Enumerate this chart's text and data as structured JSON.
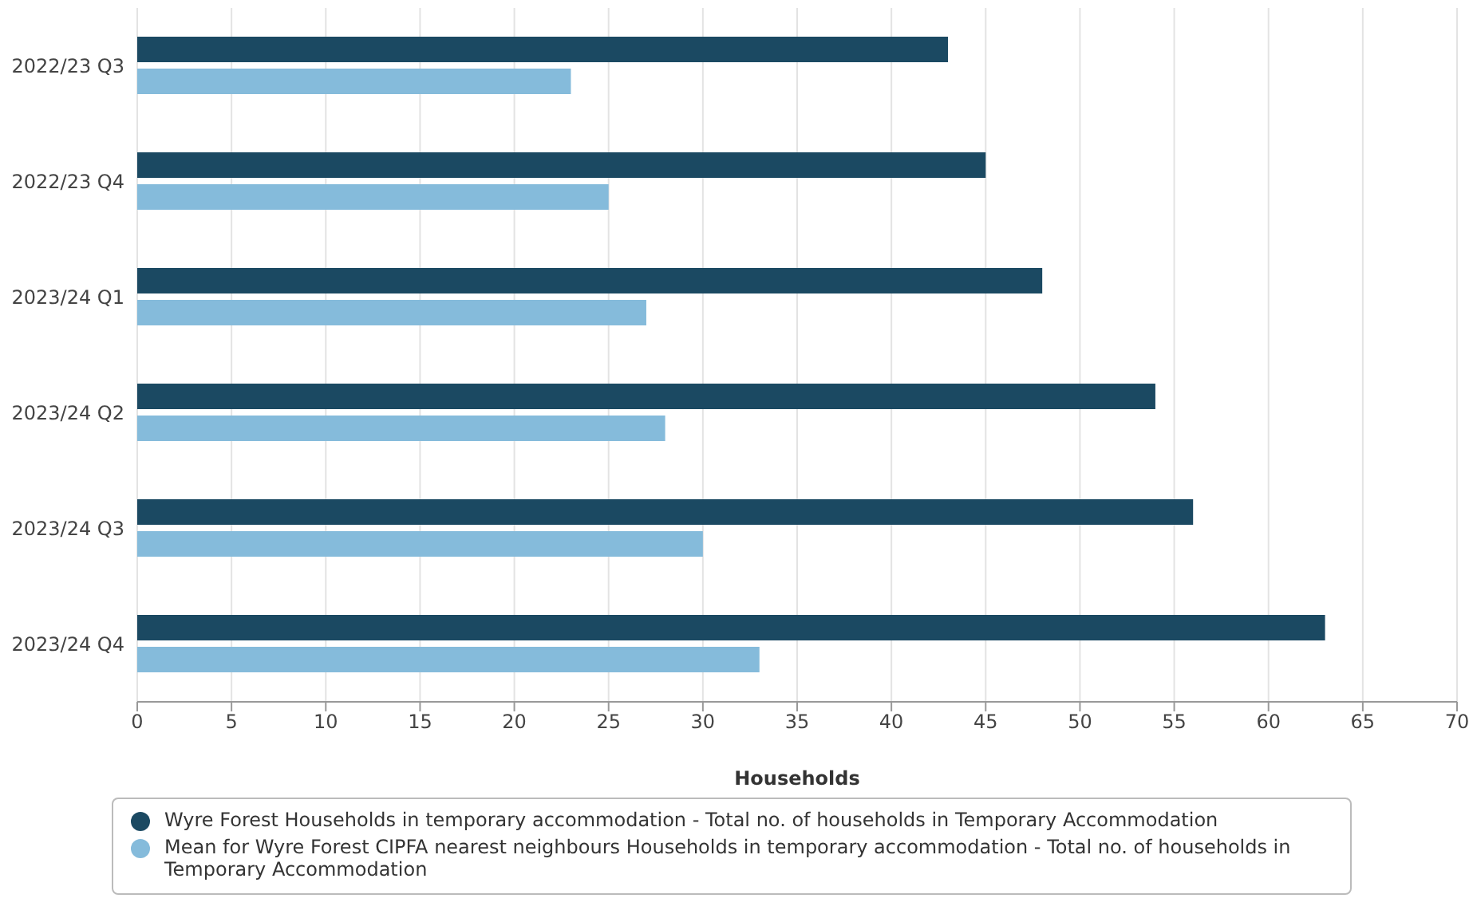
{
  "chart_data": {
    "type": "bar",
    "orientation": "horizontal",
    "xlabel": "Households",
    "categories": [
      "2022/23 Q3",
      "2022/23 Q4",
      "2023/24 Q1",
      "2023/24 Q2",
      "2023/24 Q3",
      "2023/24 Q4"
    ],
    "series": [
      {
        "name": "Wyre Forest Households in temporary accommodation - Total no. of households in Temporary Accommodation",
        "color": "#1b4962",
        "values": [
          43,
          45,
          48,
          54,
          56,
          63
        ]
      },
      {
        "name": "Mean for Wyre Forest CIPFA nearest neighbours Households in temporary accommodation - Total no. of households in Temporary Accommodation",
        "color": "#85bbdb",
        "values": [
          23,
          25,
          27,
          28,
          30,
          33
        ]
      }
    ],
    "xlim": [
      0,
      70
    ],
    "xticks": [
      0,
      5,
      10,
      15,
      20,
      25,
      30,
      35,
      40,
      45,
      50,
      55,
      60,
      65,
      70
    ],
    "grid": "x",
    "legend": "bottom"
  }
}
